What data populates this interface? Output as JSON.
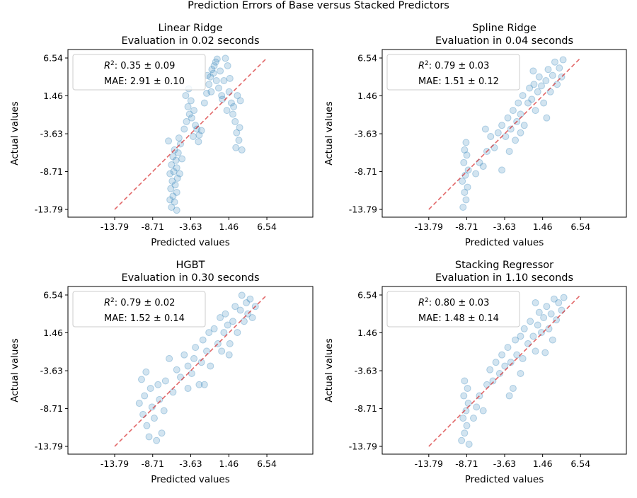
{
  "suptitle": "Prediction Errors of Base versus Stacked Predictors",
  "colors": {
    "points": "#1f77b4",
    "diagonal": "#d62728"
  },
  "chart_data": [
    {
      "type": "scatter",
      "title": "Linear Ridge",
      "subtitle": "Evaluation in 0.02 seconds",
      "xlabel": "Predicted values",
      "ylabel": "Actual values",
      "legend": {
        "r2": "0.35 ± 0.09",
        "mae_label": "MAE: 2.91 ± 0.10",
        "placement": "upper-left"
      },
      "ticks": [
        "-13.79",
        "-8.71",
        "-3.63",
        "1.46",
        "6.54"
      ],
      "xlim": [
        -20.03,
        12.68
      ],
      "ylim": [
        -14.83,
        7.68
      ],
      "points": [
        [
          -6.2,
          -13.5
        ],
        [
          -5.8,
          -12.8
        ],
        [
          -6.0,
          -12
        ],
        [
          -5.5,
          -11.5
        ],
        [
          -6.3,
          -11
        ],
        [
          -5.7,
          -10.5
        ],
        [
          -6.1,
          -10
        ],
        [
          -5.4,
          -9.6
        ],
        [
          -6.4,
          -9
        ],
        [
          -5.9,
          -8.7
        ],
        [
          -5.5,
          -8.2
        ],
        [
          -6.2,
          -7.8
        ],
        [
          -5.6,
          -7.2
        ],
        [
          -6.0,
          -6.7
        ],
        [
          -5.3,
          -6.2
        ],
        [
          -5.8,
          -5.8
        ],
        [
          -6.6,
          -4.6
        ],
        [
          -5.0,
          -5.0
        ],
        [
          -5.2,
          -4.2
        ],
        [
          -4.8,
          -7
        ],
        [
          -5.1,
          -9
        ],
        [
          -6.4,
          -12.5
        ],
        [
          -5.5,
          -13.9
        ],
        [
          -4.5,
          -3
        ],
        [
          -4.2,
          -2
        ],
        [
          -3.8,
          -1
        ],
        [
          -4.0,
          0
        ],
        [
          -3.5,
          -1.5
        ],
        [
          -3.2,
          -0.5
        ],
        [
          -3.6,
          0.8
        ],
        [
          -4.3,
          1.5
        ],
        [
          -3.0,
          -2.5
        ],
        [
          -2.8,
          -3
        ],
        [
          -2.5,
          -3.8
        ],
        [
          -2.2,
          -3.2
        ],
        [
          -3.3,
          -4
        ],
        [
          -2.6,
          -4.7
        ],
        [
          -3.9,
          2.4
        ],
        [
          -1.8,
          0.5
        ],
        [
          -1.5,
          1.8
        ],
        [
          -1.2,
          3
        ],
        [
          -1.0,
          4
        ],
        [
          -0.8,
          5
        ],
        [
          -0.5,
          5.5
        ],
        [
          -0.3,
          6
        ],
        [
          -0.6,
          4.5
        ],
        [
          -0.2,
          3.5
        ],
        [
          0.1,
          2.5
        ],
        [
          -0.9,
          2
        ],
        [
          -1.4,
          4.2
        ],
        [
          0.3,
          4.8
        ],
        [
          0.5,
          1.5
        ],
        [
          -0.1,
          6.4
        ],
        [
          1.0,
          6.5
        ],
        [
          1.3,
          5.5
        ],
        [
          0.8,
          3.5
        ],
        [
          1.5,
          2
        ],
        [
          1.8,
          0.5
        ],
        [
          2.0,
          -1
        ],
        [
          2.3,
          -2
        ],
        [
          2.5,
          -3.5
        ],
        [
          2.8,
          -4.5
        ],
        [
          2.1,
          0
        ],
        [
          2.6,
          1.5
        ],
        [
          3.0,
          0.8
        ],
        [
          1.6,
          3.8
        ],
        [
          2.4,
          -5.5
        ],
        [
          3.2,
          -5.8
        ],
        [
          1.2,
          -0.5
        ],
        [
          2.9,
          -2.8
        ],
        [
          0.6,
          1.0
        ]
      ]
    },
    {
      "type": "scatter",
      "title": "Spline Ridge",
      "subtitle": "Evaluation in 0.04 seconds",
      "xlabel": "Predicted values",
      "ylabel": "Actual values",
      "legend": {
        "r2": "0.79 ± 0.03",
        "mae_label": "MAE: 1.51 ± 0.12",
        "placement": "upper-left"
      },
      "ticks": [
        "-13.79",
        "-8.71",
        "-3.63",
        "1.46",
        "6.54"
      ],
      "xlim": [
        -20.03,
        12.68
      ],
      "ylim": [
        -14.83,
        7.68
      ],
      "points": [
        [
          -9.2,
          -13.5
        ],
        [
          -8.8,
          -12.5
        ],
        [
          -9.0,
          -11.5
        ],
        [
          -8.6,
          -10.8
        ],
        [
          -9.3,
          -10
        ],
        [
          -8.9,
          -9.2
        ],
        [
          -8.5,
          -8.5
        ],
        [
          -9.1,
          -7.5
        ],
        [
          -8.7,
          -6.5
        ],
        [
          -9.0,
          -5.8
        ],
        [
          -8.8,
          -4.8
        ],
        [
          -7.5,
          -9
        ],
        [
          -7.0,
          -7.5
        ],
        [
          -6.5,
          -8
        ],
        [
          -6,
          -6
        ],
        [
          -5.5,
          -4
        ],
        [
          -6.2,
          -3
        ],
        [
          -5,
          -5.5
        ],
        [
          -4.5,
          -3.5
        ],
        [
          -4,
          -2.5
        ],
        [
          -3.5,
          -4
        ],
        [
          -3.2,
          -1.5
        ],
        [
          -2.8,
          -3
        ],
        [
          -2.5,
          -0.5
        ],
        [
          -2,
          -2
        ],
        [
          -1.8,
          0.5
        ],
        [
          -1.5,
          -1
        ],
        [
          -1.2,
          1.5
        ],
        [
          -1,
          -2.5
        ],
        [
          -0.5,
          0.5
        ],
        [
          -0.3,
          2.5
        ],
        [
          0,
          1
        ],
        [
          0.3,
          3
        ],
        [
          0.5,
          -0.5
        ],
        [
          0.8,
          2
        ],
        [
          1,
          4
        ],
        [
          1.3,
          2.8
        ],
        [
          1.6,
          0.5
        ],
        [
          1.9,
          3.5
        ],
        [
          2.2,
          5
        ],
        [
          2.5,
          2
        ],
        [
          2.8,
          4.2
        ],
        [
          3.1,
          6
        ],
        [
          3.4,
          3
        ],
        [
          3.7,
          5.2
        ],
        [
          4,
          4
        ],
        [
          4.2,
          6.3
        ],
        [
          2,
          -1.5
        ],
        [
          -3,
          -6
        ],
        [
          -4,
          -8.5
        ],
        [
          -2.2,
          -4.5
        ],
        [
          0.2,
          4.8
        ],
        [
          -1.5,
          -3.5
        ]
      ]
    },
    {
      "type": "scatter",
      "title": "HGBT",
      "subtitle": "Evaluation in 0.30 seconds",
      "xlabel": "Predicted values",
      "ylabel": "Actual values",
      "legend": {
        "r2": "0.79 ± 0.02",
        "mae_label": "MAE: 1.52 ± 0.14",
        "placement": "upper-left"
      },
      "ticks": [
        "-13.79",
        "-8.71",
        "-3.63",
        "1.46",
        "6.54"
      ],
      "xlim": [
        -20.03,
        12.68
      ],
      "ylim": [
        -14.83,
        7.68
      ],
      "points": [
        [
          -10.5,
          -8
        ],
        [
          -10,
          -9.5
        ],
        [
          -9.8,
          -7
        ],
        [
          -9.5,
          -11
        ],
        [
          -9.2,
          -12.5
        ],
        [
          -9,
          -6
        ],
        [
          -8.8,
          -8.5
        ],
        [
          -8.5,
          -10
        ],
        [
          -8.2,
          -13
        ],
        [
          -8,
          -5.5
        ],
        [
          -7.8,
          -7.5
        ],
        [
          -7.5,
          -12
        ],
        [
          -7.2,
          -9
        ],
        [
          -10.2,
          -4.8
        ],
        [
          -9.6,
          -3.8
        ],
        [
          -7,
          -5
        ],
        [
          -6.5,
          -2
        ],
        [
          -6,
          -6.5
        ],
        [
          -5.5,
          -3.5
        ],
        [
          -5,
          -4.5
        ],
        [
          -4.5,
          -1.5
        ],
        [
          -4,
          -3
        ],
        [
          -3.5,
          -4
        ],
        [
          -3.2,
          -2
        ],
        [
          -3,
          -0.5
        ],
        [
          -2.5,
          -5.5
        ],
        [
          -2.2,
          -2.5
        ],
        [
          -2,
          0.5
        ],
        [
          -1.5,
          -1
        ],
        [
          -1.2,
          1.5
        ],
        [
          -1,
          -3
        ],
        [
          -0.5,
          2
        ],
        [
          0,
          0
        ],
        [
          0.3,
          3.5
        ],
        [
          0.5,
          -1
        ],
        [
          0.8,
          1.5
        ],
        [
          1,
          4
        ],
        [
          1.3,
          2.5
        ],
        [
          1.6,
          0
        ],
        [
          2,
          3
        ],
        [
          2.3,
          5
        ],
        [
          2.6,
          1.5
        ],
        [
          3,
          4.5
        ],
        [
          3.2,
          6.5
        ],
        [
          3.5,
          3
        ],
        [
          3.8,
          5.5
        ],
        [
          4,
          4
        ],
        [
          4.3,
          6
        ],
        [
          4.6,
          3.5
        ],
        [
          5,
          5
        ],
        [
          -1.8,
          -5.5
        ],
        [
          1.5,
          -1.5
        ],
        [
          -4,
          -6
        ]
      ]
    },
    {
      "type": "scatter",
      "title": "Stacking Regressor",
      "subtitle": "Evaluation in 1.10 seconds",
      "xlabel": "Predicted values",
      "ylabel": "Actual values",
      "legend": {
        "r2": "0.80 ± 0.03",
        "mae_label": "MAE: 1.48 ± 0.14",
        "placement": "upper-left"
      },
      "ticks": [
        "-13.79",
        "-8.71",
        "-3.63",
        "1.46",
        "6.54"
      ],
      "xlim": [
        -20.03,
        12.68
      ],
      "ylim": [
        -14.83,
        7.68
      ],
      "points": [
        [
          -9.4,
          -13
        ],
        [
          -9,
          -12
        ],
        [
          -8.7,
          -11
        ],
        [
          -9.2,
          -10
        ],
        [
          -8.8,
          -9
        ],
        [
          -8.5,
          -8
        ],
        [
          -9.1,
          -7
        ],
        [
          -8.6,
          -6
        ],
        [
          -9,
          -5
        ],
        [
          -8.4,
          -13.5
        ],
        [
          -7.8,
          -10
        ],
        [
          -7.4,
          -8.5
        ],
        [
          -7,
          -7
        ],
        [
          -6.5,
          -9
        ],
        [
          -6,
          -5.5
        ],
        [
          -5.6,
          -3.5
        ],
        [
          -5.2,
          -5
        ],
        [
          -4.8,
          -2.5
        ],
        [
          -4.3,
          -4
        ],
        [
          -4,
          -1.5
        ],
        [
          -3.6,
          -3
        ],
        [
          -3.2,
          -0.5
        ],
        [
          -2.8,
          -2.5
        ],
        [
          -2.5,
          -6
        ],
        [
          -2.2,
          0.5
        ],
        [
          -2,
          -1.5
        ],
        [
          -1.5,
          1
        ],
        [
          -1.2,
          -2
        ],
        [
          -1,
          2
        ],
        [
          -0.5,
          0
        ],
        [
          -0.2,
          3
        ],
        [
          0.2,
          1
        ],
        [
          0.5,
          -1
        ],
        [
          0.8,
          2.5
        ],
        [
          1,
          4.2
        ],
        [
          1.3,
          1.5
        ],
        [
          1.6,
          3.5
        ],
        [
          2,
          5
        ],
        [
          2.3,
          2
        ],
        [
          2.6,
          4
        ],
        [
          3,
          6
        ],
        [
          3.3,
          3.2
        ],
        [
          3.6,
          5.5
        ],
        [
          4,
          4.5
        ],
        [
          4.3,
          6.2
        ],
        [
          1.8,
          -1.2
        ],
        [
          -3,
          -7
        ],
        [
          0.5,
          5.5
        ],
        [
          -1.5,
          -4
        ],
        [
          2.8,
          0.5
        ]
      ]
    }
  ]
}
